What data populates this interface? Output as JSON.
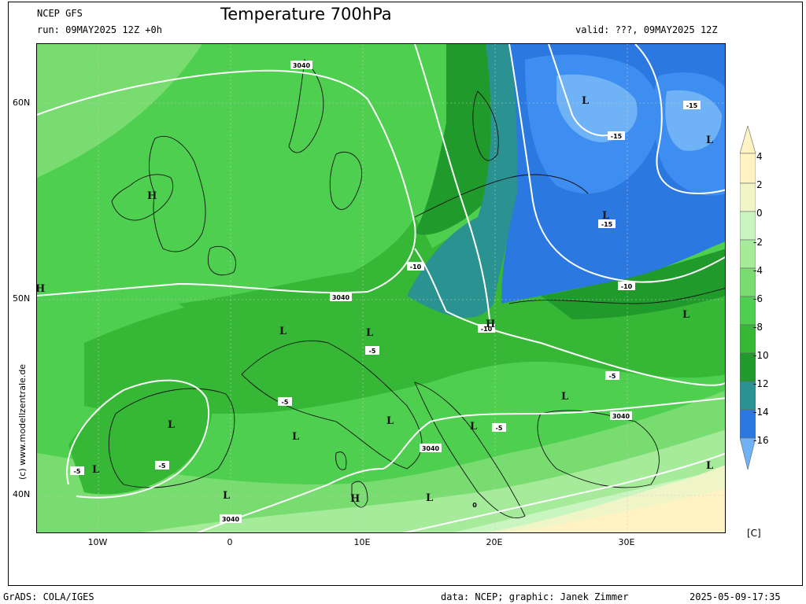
{
  "header": {
    "model": "NCEP GFS",
    "run": "run: 09MAY2025 12Z +0h",
    "title": "Temperature 700hPa",
    "valid": "valid: ???, 09MAY2025 12Z"
  },
  "axes": {
    "lat_labels": [
      "60N",
      "50N",
      "40N"
    ],
    "lon_labels": [
      "10W",
      "0",
      "10E",
      "20E",
      "30E"
    ]
  },
  "credit": "(c) www.modellzentrale.de",
  "colorbar": {
    "unit": "[C]",
    "ticks": [
      "4",
      "2",
      "0",
      "-2",
      "-4",
      "-6",
      "-8",
      "-10",
      "-12",
      "-14",
      "-16"
    ],
    "colors": [
      "#fff3c4",
      "#f0f5c8",
      "#c8f5c0",
      "#a5eb9a",
      "#78dc70",
      "#4fcf4f",
      "#36b836",
      "#1f9a2b",
      "#2a9290",
      "#2b79e0",
      "#3d8ef0",
      "#6fb2f6"
    ]
  },
  "map": {
    "contour_labels": {
      "c3040_a": "3040",
      "c3040_b": "3040",
      "c3040_c": "3040",
      "c3040_d": "3040",
      "c3040_e": "3040",
      "m10_a": "-10",
      "m10_b": "-10",
      "m10_c": "-10",
      "m15_a": "-15",
      "m15_b": "-15",
      "m15_c": "-15",
      "m5_a": "-5",
      "m5_b": "-5",
      "m5_c": "-5",
      "m5_d": "-5",
      "m5_e": "-5",
      "m5_f": "-5",
      "z0": "0"
    },
    "pressure_centers": {
      "high": "H",
      "low": "L"
    }
  },
  "footer": {
    "left": "GrADS: COLA/IGES",
    "center": "data: NCEP; graphic: Janek Zimmer",
    "right": "2025-05-09-17:35"
  }
}
